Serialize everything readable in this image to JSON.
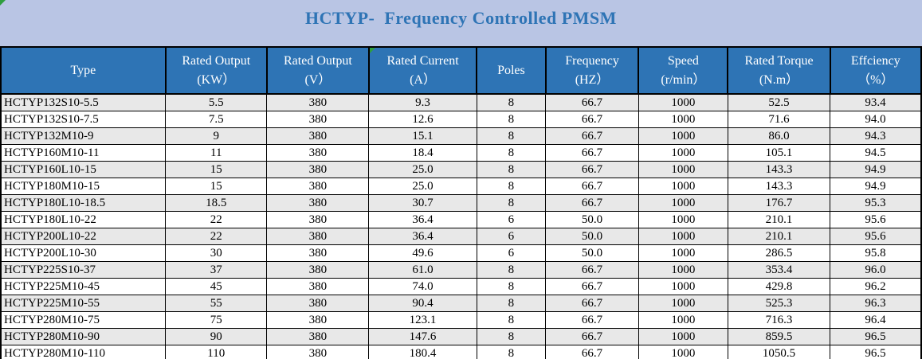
{
  "title": "HCTYP-  Frequency Controlled PMSM",
  "colors": {
    "title_background": "#b9c5e4",
    "title_text": "#2e74b5",
    "header_background": "#2e74b5",
    "header_text": "#ffffff",
    "row_stripe": "#e8e8e8",
    "row_plain": "#ffffff",
    "grid_border": "#000000",
    "error_marker_green": "#2e9e3e"
  },
  "table": {
    "columns": [
      {
        "id": "type",
        "line1": "Type",
        "line2": "",
        "width_pct": 17.9,
        "align": "left"
      },
      {
        "id": "output-kw",
        "line1": "Rated Output",
        "line2": "(KW）",
        "width_pct": 11.0,
        "align": "center"
      },
      {
        "id": "output-v",
        "line1": "Rated Output",
        "line2": "(V）",
        "width_pct": 11.1,
        "align": "center"
      },
      {
        "id": "current-a",
        "line1": "Rated Current",
        "line2": "(A）",
        "width_pct": 11.7,
        "align": "center"
      },
      {
        "id": "poles",
        "line1": "Poles",
        "line2": "",
        "width_pct": 7.5,
        "align": "center"
      },
      {
        "id": "frequency",
        "line1": "Frequency",
        "line2": "(HZ）",
        "width_pct": 10.1,
        "align": "center"
      },
      {
        "id": "speed",
        "line1": "Speed",
        "line2": "(r/min）",
        "width_pct": 9.7,
        "align": "center"
      },
      {
        "id": "torque",
        "line1": "Rated Torque",
        "line2": "(N.m）",
        "width_pct": 11.1,
        "align": "center"
      },
      {
        "id": "efficiency",
        "line1": "Effciency",
        "line2": "（%）",
        "width_pct": 9.9,
        "align": "center"
      }
    ],
    "rows": [
      [
        "HCTYP132S10-5.5",
        "5.5",
        "380",
        "9.3",
        "8",
        "66.7",
        "1000",
        "52.5",
        "93.4"
      ],
      [
        "HCTYP132S10-7.5",
        "7.5",
        "380",
        "12.6",
        "8",
        "66.7",
        "1000",
        "71.6",
        "94.0"
      ],
      [
        "HCTYP132M10-9",
        "9",
        "380",
        "15.1",
        "8",
        "66.7",
        "1000",
        "86.0",
        "94.3"
      ],
      [
        "HCTYP160M10-11",
        "11",
        "380",
        "18.4",
        "8",
        "66.7",
        "1000",
        "105.1",
        "94.5"
      ],
      [
        "HCTYP160L10-15",
        "15",
        "380",
        "25.0",
        "8",
        "66.7",
        "1000",
        "143.3",
        "94.9"
      ],
      [
        "HCTYP180M10-15",
        "15",
        "380",
        "25.0",
        "8",
        "66.7",
        "1000",
        "143.3",
        "94.9"
      ],
      [
        "HCTYP180L10-18.5",
        "18.5",
        "380",
        "30.7",
        "8",
        "66.7",
        "1000",
        "176.7",
        "95.3"
      ],
      [
        "HCTYP180L10-22",
        "22",
        "380",
        "36.4",
        "6",
        "50.0",
        "1000",
        "210.1",
        "95.6"
      ],
      [
        "HCTYP200L10-22",
        "22",
        "380",
        "36.4",
        "6",
        "50.0",
        "1000",
        "210.1",
        "95.6"
      ],
      [
        "HCTYP200L10-30",
        "30",
        "380",
        "49.6",
        "6",
        "50.0",
        "1000",
        "286.5",
        "95.8"
      ],
      [
        "HCTYP225S10-37",
        "37",
        "380",
        "61.0",
        "8",
        "66.7",
        "1000",
        "353.4",
        "96.0"
      ],
      [
        "HCTYP225M10-45",
        "45",
        "380",
        "74.0",
        "8",
        "66.7",
        "1000",
        "429.8",
        "96.2"
      ],
      [
        "HCTYP225M10-55",
        "55",
        "380",
        "90.4",
        "8",
        "66.7",
        "1000",
        "525.3",
        "96.3"
      ],
      [
        "HCTYP280M10-75",
        "75",
        "380",
        "123.1",
        "8",
        "66.7",
        "1000",
        "716.3",
        "96.4"
      ],
      [
        "HCTYP280M10-90",
        "90",
        "380",
        "147.6",
        "8",
        "66.7",
        "1000",
        "859.5",
        "96.5"
      ],
      [
        "HCTYP280M10-110",
        "110",
        "380",
        "180.4",
        "8",
        "66.7",
        "1000",
        "1050.5",
        "96.5"
      ]
    ]
  }
}
